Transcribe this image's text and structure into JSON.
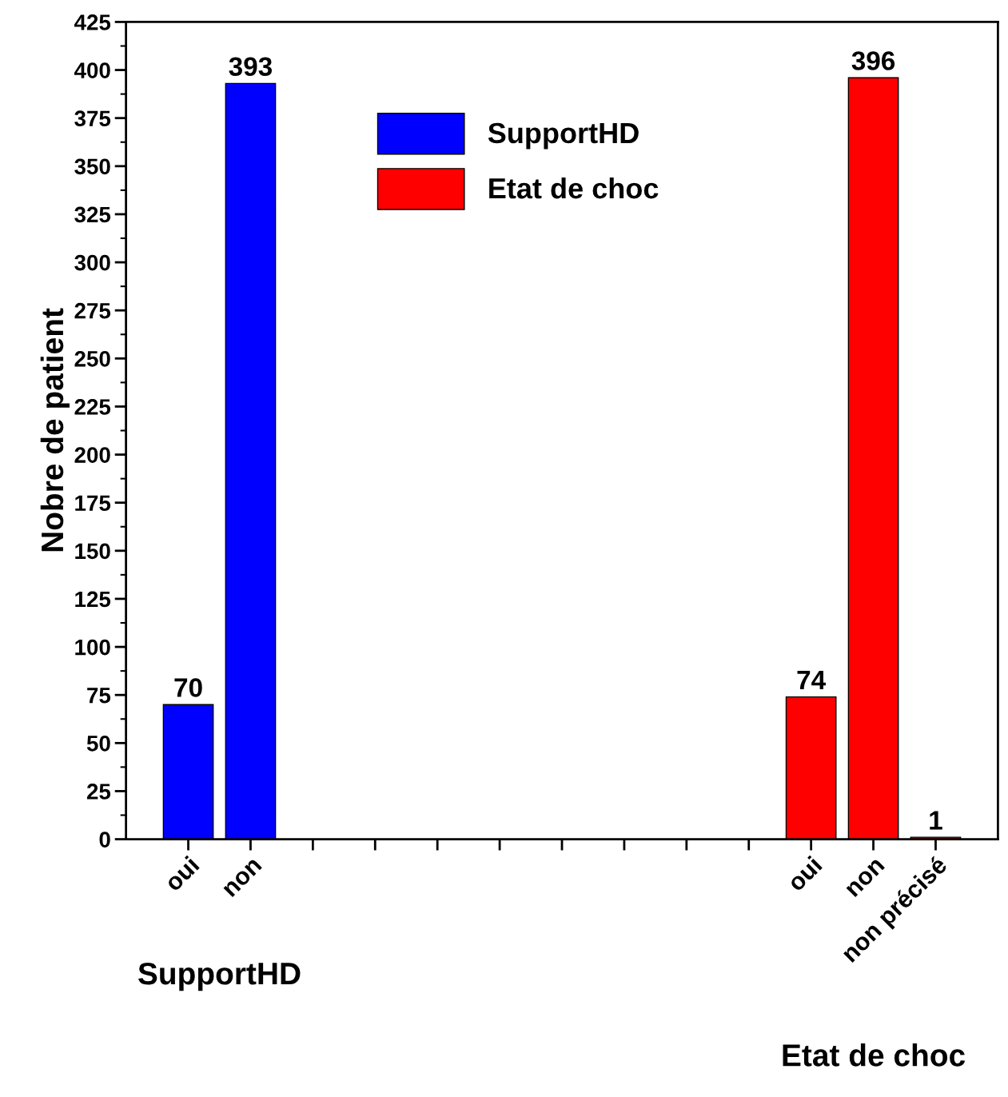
{
  "chart_data": {
    "type": "bar",
    "ylabel": "Nobre de patient",
    "categories": [
      "oui",
      "non",
      null,
      null,
      null,
      null,
      null,
      null,
      null,
      null,
      "oui",
      "non",
      "non précisé"
    ],
    "series": [
      {
        "name": "SupportHD",
        "color": "#0000ff",
        "values": [
          70,
          393,
          null,
          null,
          null,
          null,
          null,
          null,
          null,
          null,
          null,
          null,
          null
        ]
      },
      {
        "name": "Etat de choc",
        "color": "#ff0000",
        "values": [
          null,
          null,
          null,
          null,
          null,
          null,
          null,
          null,
          null,
          null,
          74,
          396,
          1
        ]
      }
    ],
    "annotations": [
      "SupportHD",
      "Etat de choc"
    ],
    "ylim": [
      0,
      425
    ],
    "yticks": [
      0,
      25,
      50,
      75,
      100,
      125,
      150,
      175,
      200,
      225,
      250,
      275,
      300,
      325,
      350,
      375,
      400,
      425
    ],
    "data_labels": true,
    "grid": false,
    "legend": "top"
  }
}
